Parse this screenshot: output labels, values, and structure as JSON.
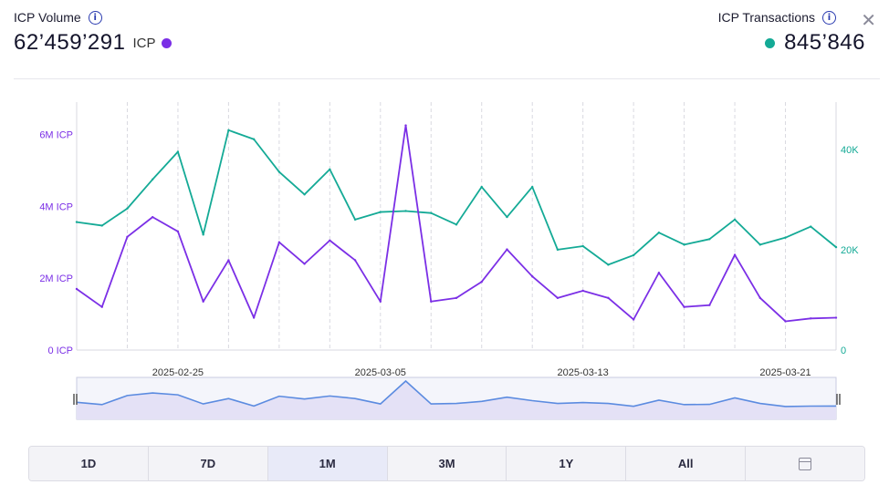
{
  "header": {
    "volume_label": "ICP Volume",
    "volume_value": "62’459’291",
    "volume_unit": "ICP",
    "transactions_label": "ICP Transactions",
    "transactions_value": "845’846",
    "info_glyph": "i",
    "close_glyph": "✕"
  },
  "colors": {
    "volume": "#7b2fe6",
    "transactions": "#14aa96",
    "nav": "#5b8be0"
  },
  "chart_data": {
    "type": "line",
    "title": "",
    "x_dates": [
      "2025-02-21",
      "2025-02-22",
      "2025-02-23",
      "2025-02-24",
      "2025-02-25",
      "2025-02-26",
      "2025-02-27",
      "2025-02-28",
      "2025-03-01",
      "2025-03-02",
      "2025-03-03",
      "2025-03-04",
      "2025-03-05",
      "2025-03-06",
      "2025-03-07",
      "2025-03-08",
      "2025-03-09",
      "2025-03-10",
      "2025-03-11",
      "2025-03-12",
      "2025-03-13",
      "2025-03-14",
      "2025-03-15",
      "2025-03-16",
      "2025-03-17",
      "2025-03-18",
      "2025-03-19",
      "2025-03-20",
      "2025-03-21",
      "2025-03-22",
      "2025-03-23"
    ],
    "xtick_labels": [
      "2025-02-25",
      "2025-03-05",
      "2025-03-13",
      "2025-03-21"
    ],
    "series": [
      {
        "name": "ICP Volume",
        "axis": "left",
        "unit": "ICP",
        "values": [
          1700000,
          1200000,
          3150000,
          3700000,
          3300000,
          1350000,
          2500000,
          900000,
          3000000,
          2400000,
          3050000,
          2500000,
          1350000,
          6250000,
          1350000,
          1450000,
          1900000,
          2800000,
          2050000,
          1450000,
          1650000,
          1450000,
          850000,
          2150000,
          1200000,
          1250000,
          2650000,
          1450000,
          800000,
          880000,
          900000
        ]
      },
      {
        "name": "ICP Transactions",
        "axis": "right",
        "unit": "",
        "values": [
          25500,
          24800,
          28200,
          34000,
          39500,
          23000,
          43800,
          42000,
          35500,
          31000,
          36000,
          26000,
          27500,
          27700,
          27300,
          25000,
          32500,
          26500,
          32500,
          20000,
          20700,
          17000,
          18900,
          23400,
          21000,
          22100,
          26000,
          21000,
          22400,
          24600,
          20500
        ]
      }
    ],
    "y_left": {
      "ticks": [
        0,
        2000000,
        4000000,
        6000000
      ],
      "tick_labels": [
        "0 ICP",
        "2M ICP",
        "4M ICP",
        "6M ICP"
      ],
      "range": [
        0,
        6900000
      ]
    },
    "y_right": {
      "ticks": [
        0,
        20000,
        40000
      ],
      "tick_labels": [
        "0",
        "20K",
        "40K"
      ],
      "range": [
        0,
        49400
      ]
    },
    "grid": "vertical-dashed"
  },
  "range_buttons": [
    {
      "label": "1D"
    },
    {
      "label": "7D"
    },
    {
      "label": "1M",
      "active": true
    },
    {
      "label": "3M"
    },
    {
      "label": "1Y"
    },
    {
      "label": "All"
    }
  ],
  "calendar_icon": "calendar-icon"
}
